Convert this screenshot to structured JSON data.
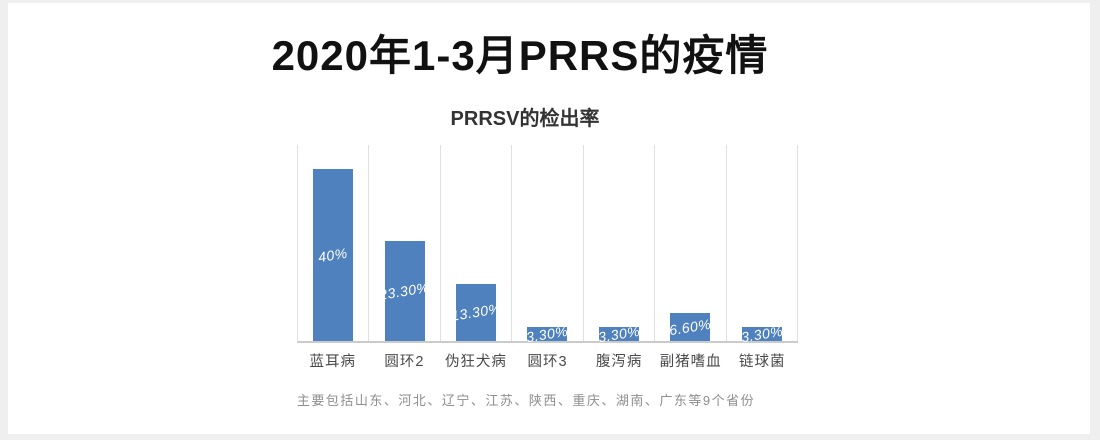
{
  "page": {
    "title": "2020年1-3月PRRS的疫情",
    "footnote": "主要包括山东、河北、辽宁、江苏、陕西、重庆、湖南、广东等9个省份"
  },
  "chart_data": {
    "type": "bar",
    "title": "PRRSV的检出率",
    "categories": [
      "蓝耳病",
      "圆环2",
      "伪狂犬病",
      "圆环3",
      "腹泻病",
      "副猪嗜血",
      "链球菌"
    ],
    "values": [
      40,
      23.3,
      13.3,
      3.3,
      3.3,
      6.6,
      3.3
    ],
    "data_labels": [
      "40%",
      "23.30%",
      "13.30%",
      "3.30%",
      "3.30%",
      "6.60%",
      "3.30%"
    ],
    "xlabel": "",
    "ylabel": "",
    "ylim": [
      0,
      46
    ],
    "y_axis_visible": false,
    "grid": "vertical-category-separators",
    "legend": "none",
    "bar_color": "#4e81bd",
    "data_label_color": "#ffffff",
    "gridline_color": "#e0e0e0",
    "baseline_color": "#cbcbcb"
  }
}
